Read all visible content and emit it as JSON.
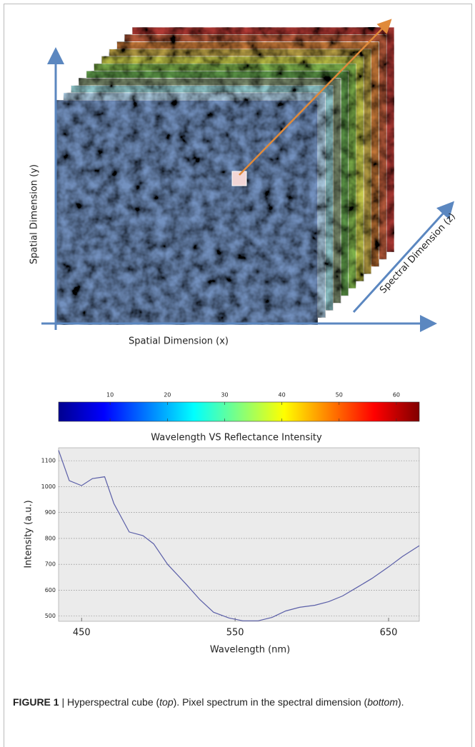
{
  "cube": {
    "y_label": "Spatial Dimension (y)",
    "x_label": "Spatial Dimension (x)",
    "z_label": "Spectral Dimension (z)"
  },
  "colorbar": {
    "xlim": [
      1,
      64
    ],
    "xticks": [
      10,
      20,
      30,
      40,
      50,
      60
    ]
  },
  "chart_data": {
    "type": "line",
    "title": "Wavelength VS Reflectance Intensity",
    "xlabel": "Wavelength (nm)",
    "ylabel": "Intensity (a.u.)",
    "x": [
      435,
      442,
      450,
      457,
      465,
      471,
      481,
      490,
      497,
      506,
      518,
      527,
      536,
      546,
      555,
      565,
      574,
      583,
      592,
      602,
      611,
      620,
      630,
      639,
      650,
      659,
      670
    ],
    "values": [
      1140,
      1023,
      1004,
      1031,
      1038,
      935,
      825,
      811,
      779,
      700,
      624,
      564,
      515,
      493,
      482,
      482,
      495,
      520,
      534,
      542,
      556,
      578,
      613,
      645,
      690,
      730,
      772
    ],
    "color": "#5b5fa8",
    "xlim": [
      435,
      670
    ],
    "ylim": [
      480,
      1150
    ],
    "xticks": [
      450,
      550,
      650
    ],
    "yticks": [
      500,
      600,
      700,
      800,
      900,
      1000,
      1100
    ],
    "grid": true
  },
  "caption": {
    "segments": [
      "FIGURE 1",
      " | Hyperspectral cube (",
      "top",
      "). Pixel spectrum in the spectral dimension (",
      "bottom",
      ")."
    ]
  }
}
